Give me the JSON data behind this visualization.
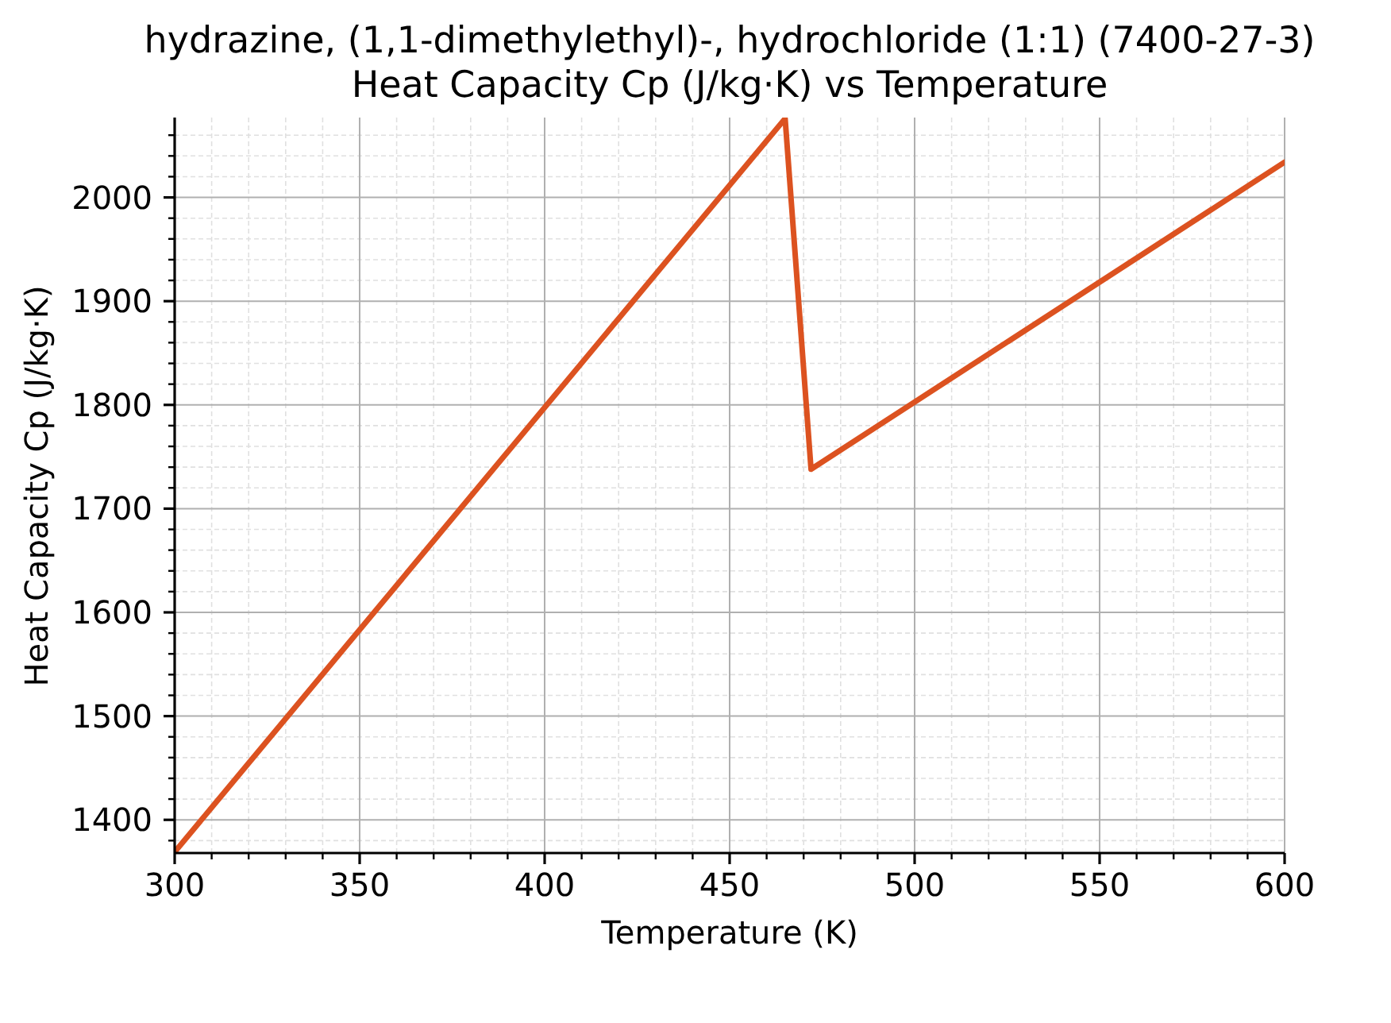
{
  "chart_data": {
    "type": "line",
    "title": "hydrazine, (1,1-dimethylethyl)-, hydrochloride (1:1) (7400-27-3)",
    "subtitle": "Heat Capacity Cp (J/kg·K) vs Temperature",
    "xlabel": "Temperature (K)",
    "ylabel": "Heat Capacity Cp (J/kg·K)",
    "x": [
      300,
      465,
      472,
      600
    ],
    "series": [
      {
        "color": "#dc5220",
        "values": [
          1369,
          2076,
          1738,
          2034
        ]
      }
    ],
    "xlim": [
      300,
      600
    ],
    "ylim": [
      1368,
      2077
    ],
    "xticks": [
      300,
      {
        "value": 310,
        "label": null
      },
      {
        "value": 320,
        "label": null
      },
      {
        "value": 330,
        "label": null
      },
      {
        "value": 340,
        "label": null
      },
      350,
      {
        "value": 360,
        "label": null
      },
      {
        "value": 370,
        "label": null
      },
      {
        "value": 380,
        "label": null
      },
      {
        "value": 390,
        "label": null
      },
      400,
      {
        "value": 410,
        "label": null
      },
      {
        "value": 420,
        "label": null
      },
      {
        "value": 430,
        "label": null
      },
      {
        "value": 440,
        "label": null
      },
      450,
      {
        "value": 460,
        "label": null
      },
      {
        "value": 470,
        "label": null
      },
      {
        "value": 480,
        "label": null
      },
      {
        "value": 490,
        "label": null
      },
      500,
      {
        "value": 510,
        "label": null
      },
      {
        "value": 520,
        "label": null
      },
      {
        "value": 530,
        "label": null
      },
      {
        "value": 540,
        "label": null
      },
      550,
      {
        "value": 560,
        "label": null
      },
      {
        "value": 570,
        "label": null
      },
      {
        "value": 580,
        "label": null
      },
      {
        "value": 590,
        "label": null
      },
      600
    ],
    "yticks": [
      {
        "value": 1380,
        "label": null
      },
      1400,
      {
        "value": 1420,
        "label": null
      },
      {
        "value": 1440,
        "label": null
      },
      {
        "value": 1460,
        "label": null
      },
      {
        "value": 1480,
        "label": null
      },
      1500,
      {
        "value": 1520,
        "label": null
      },
      {
        "value": 1540,
        "label": null
      },
      {
        "value": 1560,
        "label": null
      },
      {
        "value": 1580,
        "label": null
      },
      1600,
      {
        "value": 1620,
        "label": null
      },
      {
        "value": 1640,
        "label": null
      },
      {
        "value": 1660,
        "label": null
      },
      {
        "value": 1680,
        "label": null
      },
      1700,
      {
        "value": 1720,
        "label": null
      },
      {
        "value": 1740,
        "label": null
      },
      {
        "value": 1760,
        "label": null
      },
      {
        "value": 1780,
        "label": null
      },
      1800,
      {
        "value": 1820,
        "label": null
      },
      {
        "value": 1840,
        "label": null
      },
      {
        "value": 1860,
        "label": null
      },
      {
        "value": 1880,
        "label": null
      },
      1900,
      {
        "value": 1920,
        "label": null
      },
      {
        "value": 1940,
        "label": null
      },
      {
        "value": 1960,
        "label": null
      },
      {
        "value": 1980,
        "label": null
      },
      2000,
      {
        "value": 2020,
        "label": null
      },
      {
        "value": 2040,
        "label": null
      },
      {
        "value": 2060,
        "label": null
      }
    ],
    "grid": true
  }
}
